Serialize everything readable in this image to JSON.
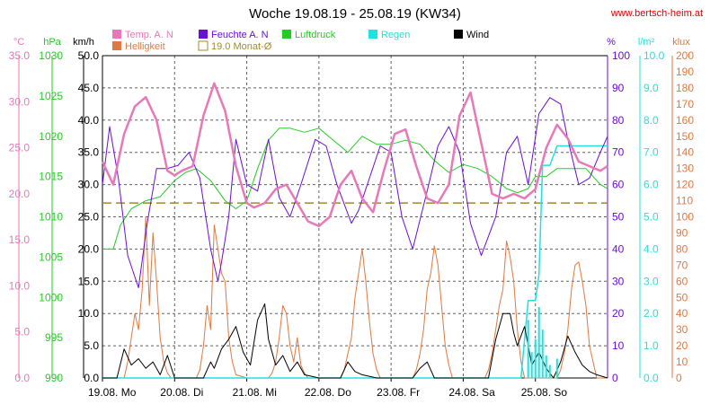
{
  "title": "Woche 19.08.19 - 25.08.19 (KW34)",
  "source": "www.bertsch-heim.at",
  "colors": {
    "temp": "#e878b8",
    "humidity": "#6a0dd8",
    "pressure": "#22cc22",
    "rain": "#22e0e0",
    "wind": "#000000",
    "brightness": "#e07840",
    "avg": "#a08a28",
    "grid": "#606060",
    "background": "#ffffff"
  },
  "legend": [
    {
      "label": "Temp. A. N",
      "color": "#e878b8"
    },
    {
      "label": "Feuchte A. N",
      "color": "#6a0dd8"
    },
    {
      "label": "Luftdruck",
      "color": "#22cc22"
    },
    {
      "label": "Regen",
      "color": "#22e0e0"
    },
    {
      "label": "Wind",
      "color": "#000000"
    },
    {
      "label": "Helligkeit",
      "color": "#e07840"
    },
    {
      "label": "19.0 Monat-Ø",
      "color": "#a08a28"
    }
  ],
  "axes": {
    "temp": {
      "unit": "°C",
      "min": 0,
      "max": 35,
      "ticks": [
        "0.0",
        "5.0",
        "10.0",
        "15.0",
        "20.0",
        "25.0",
        "30.0",
        "35.0"
      ],
      "color": "#e878b8"
    },
    "pressure": {
      "unit": "hPa",
      "min": 990,
      "max": 1030,
      "ticks": [
        "990",
        "995",
        "1000",
        "1005",
        "1010",
        "1015",
        "1020",
        "1025",
        "1030"
      ],
      "color": "#22cc22"
    },
    "wind": {
      "unit": "km/h",
      "min": 0,
      "max": 50,
      "ticks": [
        "0.0",
        "5.0",
        "10.0",
        "15.0",
        "20.0",
        "25.0",
        "30.0",
        "35.0",
        "40.0",
        "45.0",
        "50.0"
      ],
      "color": "#000000"
    },
    "humidity": {
      "unit": "%",
      "min": 0,
      "max": 100,
      "ticks": [
        "0",
        "10",
        "20",
        "30",
        "40",
        "50",
        "60",
        "70",
        "80",
        "90",
        "100"
      ],
      "color": "#6a0dd8"
    },
    "rain": {
      "unit": "l/m²",
      "min": 0,
      "max": 10,
      "ticks": [
        "0.0",
        "1.0",
        "2.0",
        "3.0",
        "4.0",
        "5.0",
        "6.0",
        "7.0",
        "8.0",
        "9.0",
        "10.0"
      ],
      "color": "#22e0e0"
    },
    "brightness": {
      "unit": "klux",
      "min": 0,
      "max": 200,
      "ticks": [
        "0",
        "10",
        "20",
        "30",
        "40",
        "50",
        "60",
        "70",
        "80",
        "90",
        "100",
        "110",
        "120",
        "130",
        "140",
        "150",
        "160",
        "170",
        "180",
        "190",
        "200"
      ],
      "color": "#e07840"
    }
  },
  "days": [
    "19.08.  Mo",
    "20.08.  Di",
    "21.08.  Mi",
    "22.08.  Do",
    "23.08.  Fr",
    "24.08.  Sa",
    "25.08.  So"
  ],
  "chart_data": {
    "type": "line",
    "x_unit": "day of week (0 = 19.08. 00:00, 7 = 26.08. 00:00)",
    "series": [
      {
        "name": "Temp. A. N",
        "axis": "temp",
        "x": [
          0,
          0.15,
          0.3,
          0.45,
          0.6,
          0.75,
          0.9,
          1.0,
          1.1,
          1.25,
          1.4,
          1.55,
          1.7,
          1.85,
          2.0,
          2.1,
          2.25,
          2.4,
          2.55,
          2.7,
          2.85,
          3.0,
          3.15,
          3.3,
          3.45,
          3.6,
          3.75,
          3.9,
          4.05,
          4.2,
          4.35,
          4.5,
          4.65,
          4.8,
          4.95,
          5.1,
          5.25,
          5.4,
          5.55,
          5.7,
          5.85,
          6.0,
          6.15,
          6.3,
          6.45,
          6.6,
          6.75,
          6.9,
          7.0
        ],
        "y": [
          23.5,
          21.0,
          26.5,
          29.5,
          30.5,
          28.0,
          22.5,
          22.0,
          22.5,
          23.0,
          28.5,
          32.0,
          29.0,
          23.0,
          19.0,
          18.5,
          19.0,
          20.5,
          21.0,
          19.0,
          17.0,
          16.5,
          17.5,
          21.0,
          22.5,
          19.5,
          18.0,
          22.5,
          26.5,
          27.0,
          23.0,
          19.5,
          19.0,
          21.0,
          28.5,
          31.0,
          25.5,
          20.0,
          19.5,
          20.0,
          19.5,
          20.5,
          25.0,
          27.5,
          26.0,
          23.5,
          23.0,
          22.5,
          23.0
        ]
      },
      {
        "name": "Feuchte A. N",
        "axis": "humidity",
        "x": [
          0,
          0.1,
          0.22,
          0.35,
          0.5,
          0.62,
          0.75,
          0.9,
          1.05,
          1.2,
          1.35,
          1.5,
          1.6,
          1.65,
          1.75,
          1.85,
          2.0,
          2.15,
          2.3,
          2.45,
          2.6,
          2.75,
          2.95,
          3.1,
          3.25,
          3.45,
          3.55,
          3.7,
          3.85,
          4.0,
          4.15,
          4.3,
          4.5,
          4.65,
          4.8,
          4.95,
          5.1,
          5.25,
          5.45,
          5.6,
          5.75,
          5.9,
          6.05,
          6.2,
          6.35,
          6.45,
          6.6,
          6.75,
          6.9,
          7.0
        ],
        "y": [
          60,
          78,
          62,
          38,
          28,
          48,
          65,
          65,
          66,
          70,
          62,
          40,
          30,
          36,
          50,
          74,
          60,
          58,
          74,
          56,
          50,
          60,
          74,
          72,
          60,
          48,
          52,
          62,
          72,
          70,
          50,
          40,
          58,
          72,
          78,
          70,
          48,
          38,
          50,
          70,
          75,
          60,
          82,
          87,
          85,
          74,
          60,
          62,
          70,
          75
        ]
      },
      {
        "name": "Luftdruck",
        "axis": "pressure",
        "x": [
          0,
          0.15,
          0.25,
          0.4,
          0.6,
          0.8,
          1.0,
          1.15,
          1.3,
          1.5,
          1.7,
          1.85,
          2.0,
          2.15,
          2.3,
          2.45,
          2.6,
          2.8,
          3.0,
          3.2,
          3.4,
          3.6,
          3.8,
          4.0,
          4.2,
          4.4,
          4.6,
          4.8,
          5.0,
          5.2,
          5.4,
          5.6,
          5.75,
          5.9,
          6.0,
          6.15,
          6.3,
          6.5,
          6.7,
          6.9,
          7.0
        ],
        "y": [
          1006,
          1006,
          1009,
          1011,
          1012,
          1012.5,
          1014.5,
          1015.5,
          1016,
          1014.5,
          1012,
          1011,
          1012,
          1016,
          1019.5,
          1021,
          1021,
          1020.5,
          1021,
          1019.5,
          1018,
          1020,
          1019,
          1019,
          1019.5,
          1019,
          1017,
          1015.5,
          1016.5,
          1016,
          1015,
          1013.5,
          1013,
          1013.5,
          1015,
          1015,
          1016,
          1016,
          1016,
          1014,
          1013.5
        ]
      },
      {
        "name": "Regen",
        "axis": "rain",
        "x": [
          0,
          5.8,
          5.9,
          6.0,
          6.05,
          6.1,
          6.2,
          6.3,
          6.5,
          6.6,
          6.7,
          6.8,
          7.0
        ],
        "y": [
          0,
          0,
          2.4,
          2.4,
          3.2,
          6.6,
          6.6,
          7.2,
          7.2,
          7.2,
          7.2,
          7.2,
          7.2
        ]
      },
      {
        "name": "Wind",
        "axis": "wind",
        "x": [
          0,
          0.2,
          0.3,
          0.4,
          0.5,
          0.6,
          0.7,
          0.8,
          0.9,
          1.0,
          1.4,
          1.5,
          1.55,
          1.65,
          1.75,
          1.85,
          1.95,
          2.05,
          2.15,
          2.25,
          2.3,
          2.4,
          2.5,
          2.6,
          2.7,
          2.8,
          3.0,
          3.3,
          3.4,
          3.5,
          3.6,
          3.8,
          4.3,
          4.4,
          4.5,
          4.6,
          5.35,
          5.45,
          5.55,
          5.65,
          5.7,
          5.75,
          5.85,
          5.95,
          6.05,
          6.15,
          6.25,
          6.35,
          6.45,
          6.55,
          6.65,
          6.75,
          6.85,
          7.0
        ],
        "y": [
          0,
          0,
          4.5,
          2,
          3,
          1.5,
          2.5,
          0.5,
          3.5,
          0,
          0,
          2.5,
          1.5,
          4.5,
          6,
          8,
          4,
          2,
          9,
          11.5,
          6,
          2,
          3.5,
          1,
          2.5,
          0.5,
          0,
          0,
          2.5,
          1,
          0.5,
          0,
          0,
          1.5,
          2.5,
          0,
          0,
          6,
          10,
          10,
          7,
          5,
          8,
          2,
          4,
          1.5,
          0,
          2.5,
          6.5,
          4,
          2,
          1,
          0.5,
          0
        ]
      },
      {
        "name": "Helligkeit",
        "axis": "brightness",
        "x": [
          0,
          0.3,
          0.35,
          0.4,
          0.45,
          0.5,
          0.55,
          0.6,
          0.65,
          0.7,
          0.75,
          0.8,
          0.85,
          0.9,
          0.95,
          1.0,
          1.3,
          1.35,
          1.4,
          1.45,
          1.5,
          1.55,
          1.6,
          1.65,
          1.7,
          1.75,
          1.8,
          1.85,
          2.0,
          2.3,
          2.35,
          2.4,
          2.45,
          2.5,
          2.55,
          2.6,
          2.65,
          2.7,
          2.75,
          2.8,
          2.85,
          3.0,
          3.3,
          3.35,
          3.4,
          3.45,
          3.5,
          3.55,
          3.6,
          3.65,
          3.7,
          3.75,
          3.8,
          3.85,
          4.0,
          4.3,
          4.35,
          4.4,
          4.45,
          4.5,
          4.55,
          4.6,
          4.65,
          4.7,
          4.75,
          4.8,
          4.85,
          5.0,
          5.3,
          5.35,
          5.4,
          5.45,
          5.5,
          5.55,
          5.6,
          5.65,
          5.7,
          5.75,
          5.8,
          5.85,
          6.0,
          6.3,
          6.35,
          6.4,
          6.45,
          6.5,
          6.55,
          6.6,
          6.65,
          6.7,
          6.75,
          6.8,
          6.85,
          7.0
        ],
        "y": [
          0,
          0,
          10,
          25,
          40,
          30,
          55,
          100,
          45,
          90,
          60,
          25,
          10,
          3,
          0,
          0,
          0,
          5,
          20,
          45,
          30,
          95,
          80,
          65,
          60,
          25,
          10,
          2,
          0,
          0,
          3,
          10,
          25,
          45,
          40,
          20,
          10,
          25,
          8,
          3,
          0,
          0,
          0,
          5,
          15,
          25,
          50,
          65,
          80,
          60,
          35,
          15,
          5,
          0,
          0,
          0,
          5,
          15,
          30,
          55,
          65,
          82,
          70,
          45,
          20,
          8,
          0,
          0,
          0,
          5,
          15,
          30,
          45,
          55,
          85,
          75,
          60,
          30,
          10,
          0,
          0,
          0,
          5,
          15,
          30,
          55,
          70,
          72,
          60,
          45,
          20,
          10,
          0,
          0
        ]
      }
    ],
    "reference_line": {
      "label": "19.0 Monat-Ø",
      "axis": "temp",
      "value": 19.0
    },
    "grid": true,
    "legend_position": "top"
  }
}
